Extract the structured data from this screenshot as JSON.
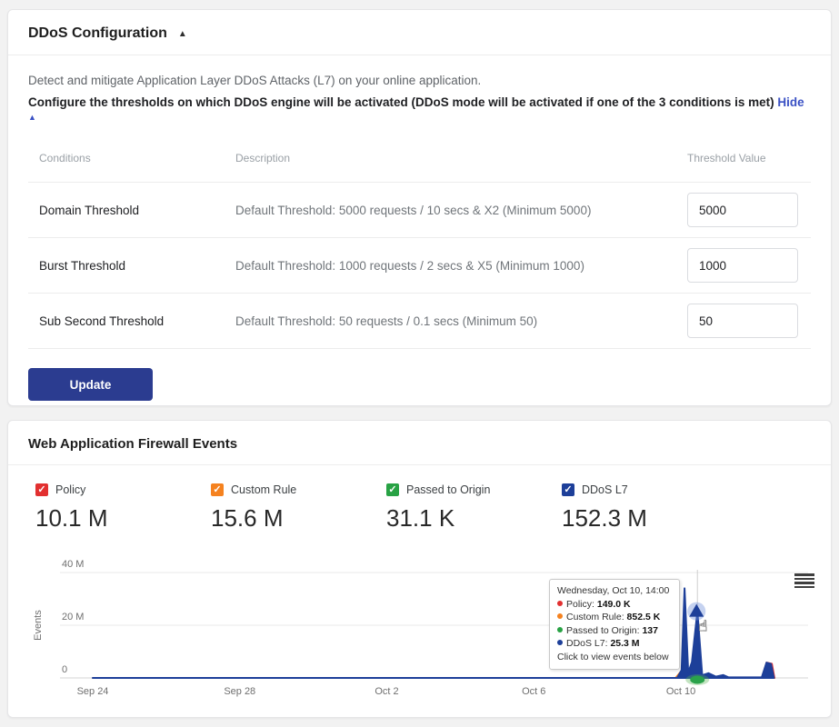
{
  "ddos_card": {
    "title": "DDoS Configuration",
    "collapse_icon": "▲",
    "intro": "Detect and mitigate Application Layer DDoS Attacks (L7) on your online application.",
    "config_note": "Configure the thresholds on which DDoS engine will be activated (DDoS mode will be activated if one of the 3 conditions is met)",
    "hide_link": "Hide",
    "hide_icon": "▲",
    "table": {
      "headers": {
        "conditions": "Conditions",
        "description": "Description",
        "threshold": "Threshold Value"
      },
      "rows": [
        {
          "condition": "Domain Threshold",
          "description": "Default Threshold: 5000 requests / 10 secs & X2 (Minimum 5000)",
          "value": "5000"
        },
        {
          "condition": "Burst Threshold",
          "description": "Default Threshold: 1000 requests / 2 secs & X5 (Minimum 1000)",
          "value": "1000"
        },
        {
          "condition": "Sub Second Threshold",
          "description": "Default Threshold: 50 requests / 0.1 secs (Minimum 50)",
          "value": "50"
        }
      ]
    },
    "update_button": "Update"
  },
  "waf_card": {
    "title": "Web Application Firewall Events",
    "legend": [
      {
        "label": "Policy",
        "value": "10.1 M",
        "color": "#e23030",
        "check": "✓"
      },
      {
        "label": "Custom Rule",
        "value": "15.6 M",
        "color": "#f5821f",
        "check": "✓"
      },
      {
        "label": "Passed to Origin",
        "value": "31.1 K",
        "color": "#28a244",
        "check": "✓"
      },
      {
        "label": "DDoS L7",
        "value": "152.3 M",
        "color": "#1d3f99",
        "check": "✓"
      }
    ],
    "tooltip": {
      "title": "Wednesday, Oct 10, 14:00",
      "rows": [
        {
          "label": "Policy",
          "value": "149.0 K",
          "color": "#e23030"
        },
        {
          "label": "Custom Rule",
          "value": "852.5 K",
          "color": "#f5821f"
        },
        {
          "label": "Passed to Origin",
          "value": "137",
          "color": "#28a244"
        },
        {
          "label": "DDoS L7",
          "value": "25.3 M",
          "color": "#1d3f99"
        }
      ],
      "footer": "Click to view events below"
    }
  },
  "chart_data": {
    "type": "line",
    "title": "Web Application Firewall Events",
    "ylabel": "Events",
    "ylim": [
      0,
      46000000
    ],
    "yticks": [
      {
        "label": "0",
        "value": 0
      },
      {
        "label": "20 M",
        "value": 20000000
      },
      {
        "label": "40 M",
        "value": 40000000
      }
    ],
    "xticks": [
      {
        "label": "Sep 24",
        "day": 0
      },
      {
        "label": "Sep 28",
        "day": 4
      },
      {
        "label": "Oct 2",
        "day": 8
      },
      {
        "label": "Oct 6",
        "day": 12
      },
      {
        "label": "Oct 10",
        "day": 16
      }
    ],
    "x_unit": "days since Sep 24",
    "series": [
      {
        "name": "Policy",
        "color": "#e23030",
        "points": [
          [
            0,
            0
          ],
          [
            16.3,
            0
          ],
          [
            16.45,
            149000
          ],
          [
            16.6,
            0
          ],
          [
            18.2,
            0
          ],
          [
            18.33,
            5900000
          ],
          [
            18.48,
            5400000
          ],
          [
            18.55,
            0
          ]
        ]
      },
      {
        "name": "Custom Rule",
        "color": "#f5821f",
        "points": [
          [
            0,
            0
          ],
          [
            15.85,
            0
          ],
          [
            15.98,
            2200000
          ],
          [
            16.12,
            500000
          ],
          [
            16.3,
            700000
          ],
          [
            16.45,
            852500
          ],
          [
            16.5,
            1800000
          ],
          [
            16.65,
            0
          ],
          [
            18.55,
            0
          ]
        ]
      },
      {
        "name": "Passed to Origin",
        "color": "#28a244",
        "points": [
          [
            0,
            0
          ],
          [
            16.45,
            137
          ],
          [
            18.55,
            0
          ]
        ]
      },
      {
        "name": "DDoS L7",
        "color": "#1d3f99",
        "points": [
          [
            0,
            0
          ],
          [
            15.9,
            0
          ],
          [
            16.02,
            3000000
          ],
          [
            16.1,
            34000000
          ],
          [
            16.2,
            2000000
          ],
          [
            16.3,
            6000000
          ],
          [
            16.45,
            25300000
          ],
          [
            16.58,
            1000000
          ],
          [
            16.75,
            1800000
          ],
          [
            16.95,
            500000
          ],
          [
            17.15,
            1100000
          ],
          [
            17.3,
            200000
          ],
          [
            18.2,
            200000
          ],
          [
            18.33,
            5800000
          ],
          [
            18.45,
            5300000
          ],
          [
            18.53,
            0
          ]
        ]
      }
    ],
    "hover_point": {
      "series": "DDoS L7",
      "day": 16.45,
      "value": 25300000,
      "label": "Wednesday, Oct 10, 14:00"
    }
  }
}
